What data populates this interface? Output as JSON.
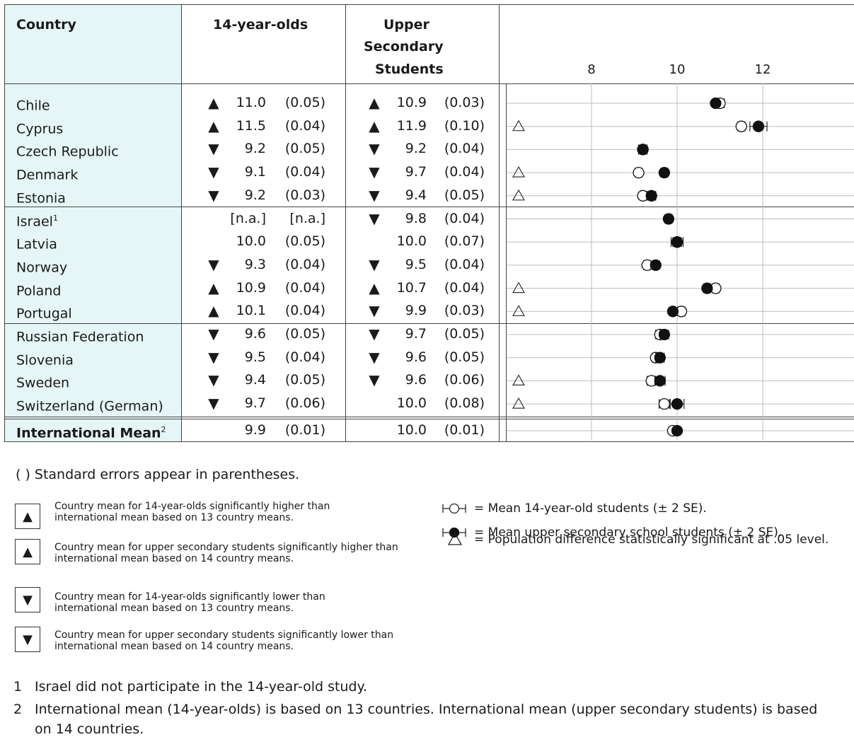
{
  "headers": {
    "country": "Country",
    "col14": "14-year-olds",
    "colUpper": [
      "Upper",
      "Secondary",
      "Students"
    ]
  },
  "axis_ticks": [
    "8",
    "10",
    "12"
  ],
  "rows": [
    {
      "country": "Chile",
      "sup": "",
      "a14": "▲",
      "v14": "11.0",
      "se14": "(0.05)",
      "aU": "▲",
      "vU": "10.9",
      "seU": "(0.03)",
      "diff": ""
    },
    {
      "country": "Cyprus",
      "sup": "",
      "a14": "▲",
      "v14": "11.5",
      "se14": "(0.04)",
      "aU": "▲",
      "vU": "11.9",
      "seU": "(0.10)",
      "diff": "△"
    },
    {
      "country": "Czech Republic",
      "sup": "",
      "a14": "▼",
      "v14": "9.2",
      "se14": "(0.05)",
      "aU": "▼",
      "vU": "9.2",
      "seU": "(0.04)",
      "diff": ""
    },
    {
      "country": "Denmark",
      "sup": "",
      "a14": "▼",
      "v14": "9.1",
      "se14": "(0.04)",
      "aU": "▼",
      "vU": "9.7",
      "seU": "(0.04)",
      "diff": "△"
    },
    {
      "country": "Estonia",
      "sup": "",
      "a14": "▼",
      "v14": "9.2",
      "se14": "(0.03)",
      "aU": "▼",
      "vU": "9.4",
      "seU": "(0.05)",
      "diff": "△"
    },
    {
      "country": "Israel",
      "sup": "1",
      "a14": "",
      "v14": "[n.a.]",
      "se14": "[n.a.]",
      "aU": "▼",
      "vU": "9.8",
      "seU": "(0.04)",
      "diff": ""
    },
    {
      "country": "Latvia",
      "sup": "",
      "a14": "",
      "v14": "10.0",
      "se14": "(0.05)",
      "aU": "",
      "vU": "10.0",
      "seU": "(0.07)",
      "diff": ""
    },
    {
      "country": "Norway",
      "sup": "",
      "a14": "▼",
      "v14": "9.3",
      "se14": "(0.04)",
      "aU": "▼",
      "vU": "9.5",
      "seU": "(0.04)",
      "diff": ""
    },
    {
      "country": "Poland",
      "sup": "",
      "a14": "▲",
      "v14": "10.9",
      "se14": "(0.04)",
      "aU": "▲",
      "vU": "10.7",
      "seU": "(0.04)",
      "diff": "△"
    },
    {
      "country": "Portugal",
      "sup": "",
      "a14": "▲",
      "v14": "10.1",
      "se14": "(0.04)",
      "aU": "▼",
      "vU": "9.9",
      "seU": "(0.03)",
      "diff": "△"
    },
    {
      "country": "Russian Federation",
      "sup": "",
      "a14": "▼",
      "v14": "9.6",
      "se14": "(0.05)",
      "aU": "▼",
      "vU": "9.7",
      "seU": "(0.05)",
      "diff": ""
    },
    {
      "country": "Slovenia",
      "sup": "",
      "a14": "▼",
      "v14": "9.5",
      "se14": "(0.04)",
      "aU": "▼",
      "vU": "9.6",
      "seU": "(0.05)",
      "diff": ""
    },
    {
      "country": "Sweden",
      "sup": "",
      "a14": "▼",
      "v14": "9.4",
      "se14": "(0.05)",
      "aU": "▼",
      "vU": "9.6",
      "seU": "(0.06)",
      "diff": "△"
    },
    {
      "country": "Switzerland (German)",
      "sup": "",
      "a14": "▼",
      "v14": "9.7",
      "se14": "(0.06)",
      "aU": "",
      "vU": "10.0",
      "seU": "(0.08)",
      "diff": "△"
    },
    {
      "country": "International Mean",
      "sup": "2",
      "a14": "",
      "v14": "9.9",
      "se14": "(0.01)",
      "aU": "",
      "vU": "10.0",
      "seU": "(0.01)",
      "diff": ""
    }
  ],
  "chart_data": {
    "type": "scatter",
    "xlim": [
      6.0,
      13.0
    ],
    "x_ticks": [
      8,
      10,
      12
    ],
    "grid": true,
    "categories": [
      "Chile",
      "Cyprus",
      "Czech Republic",
      "Denmark",
      "Estonia",
      "Israel",
      "Latvia",
      "Norway",
      "Poland",
      "Portugal",
      "Russian Federation",
      "Slovenia",
      "Sweden",
      "Switzerland (German)",
      "International Mean"
    ],
    "series": [
      {
        "name": "Mean 14-year-old students (± 2 SE).",
        "values": [
          11.0,
          11.5,
          9.2,
          9.1,
          9.2,
          null,
          10.0,
          9.3,
          10.9,
          10.1,
          9.6,
          9.5,
          9.4,
          9.7,
          9.9
        ],
        "se": [
          0.05,
          0.04,
          0.05,
          0.04,
          0.03,
          null,
          0.05,
          0.04,
          0.04,
          0.04,
          0.05,
          0.04,
          0.05,
          0.06,
          0.01
        ]
      },
      {
        "name": "Mean upper secondary school students (± 2 SE).",
        "values": [
          10.9,
          11.9,
          9.2,
          9.7,
          9.4,
          9.8,
          10.0,
          9.5,
          10.7,
          9.9,
          9.7,
          9.6,
          9.6,
          10.0,
          10.0
        ],
        "se": [
          0.03,
          0.1,
          0.04,
          0.04,
          0.05,
          0.04,
          0.07,
          0.04,
          0.04,
          0.03,
          0.05,
          0.05,
          0.06,
          0.08,
          0.01
        ]
      }
    ],
    "significant_difference": [
      false,
      true,
      false,
      true,
      true,
      false,
      false,
      false,
      true,
      true,
      false,
      false,
      true,
      true,
      false
    ]
  },
  "notes": {
    "se_note": "( ) Standard errors appear in parentheses.",
    "legend_boxes": [
      {
        "symbol": "▲",
        "text": "Country mean for 14-year-olds significantly higher than international mean based on 13 country means."
      },
      {
        "symbol": "▲",
        "text": "Country mean for upper secondary students significantly higher than international mean based on 14 country means."
      },
      {
        "symbol": "▼",
        "text": "Country mean for 14-year-olds significantly lower than international mean based on 13 country means."
      },
      {
        "symbol": "▼",
        "text": "Country mean for upper secondary students significantly lower than international mean based on 14 country means."
      }
    ],
    "sym_open": "= Mean 14-year-old students (± 2 SE).",
    "sym_filled": "= Mean upper secondary school students (± 2 SE).",
    "sym_triangle": "= Population difference statistically significant at .05 level.",
    "footnote1_num": "1",
    "footnote1": "Israel did not participate in the 14-year-old study.",
    "footnote2_num": "2",
    "footnote2a": "International mean (14-year-olds) is based on 13 countries. International mean (upper secondary students) is based",
    "footnote2b": "on 14 countries."
  }
}
